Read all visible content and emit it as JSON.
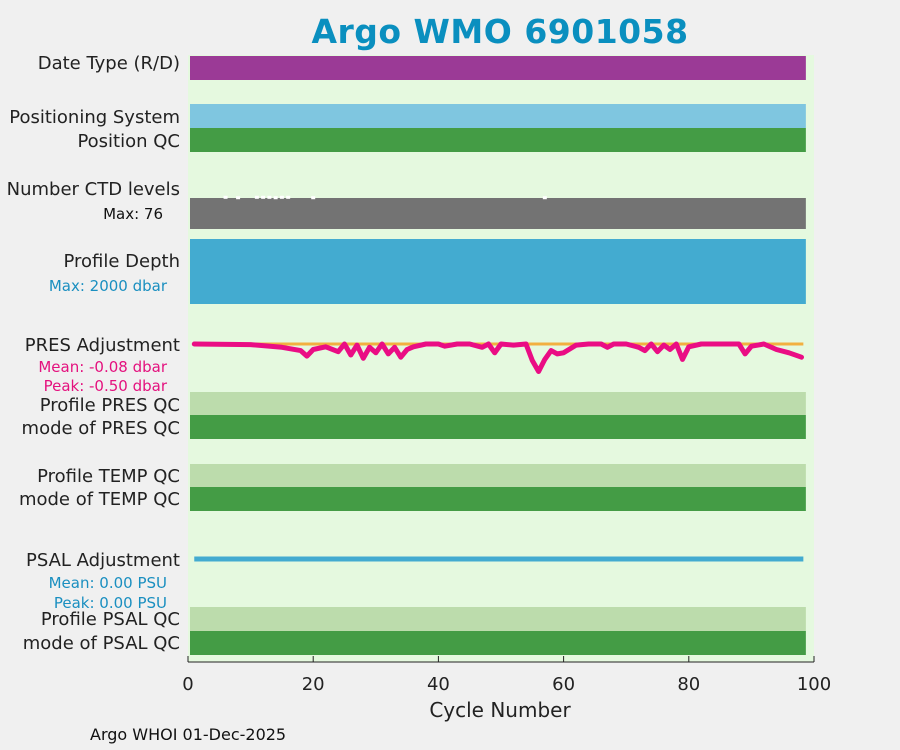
{
  "page": {
    "title": "Argo WMO 6901058",
    "title_color": "#0a8fbf",
    "footer": "Argo WHOI 01-Dec-2025"
  },
  "chart_data": {
    "type": "line",
    "xlabel": "Cycle Number",
    "xlim": [
      0,
      100
    ],
    "xticks": [
      0,
      20,
      40,
      60,
      80,
      100
    ],
    "grid": false,
    "cycles": {
      "first": 1,
      "last": 98
    },
    "colors": {
      "background": "#e5f9df",
      "date_type": "#9b3a96",
      "positioning": "#7fc6e0",
      "qc_good": "#449c45",
      "qc_profile": "#bcdcac",
      "ctd_levels": "#737373",
      "profile_depth": "#43abd0",
      "pres_adj": "#ea0d84",
      "pres_ref": "#f2b040",
      "psal_adj": "#43abd0",
      "blue_text": "#1a8fc0",
      "pink_text": "#e4117e"
    },
    "tracks": {
      "date_type": {
        "label": "Date Type (R/D)",
        "value": "R"
      },
      "positioning_system": {
        "label": "Positioning System"
      },
      "position_qc": {
        "label": "Position QC"
      },
      "ctd_levels": {
        "label": "Number CTD levels",
        "max_label": "Max: 76",
        "max": 76
      },
      "profile_depth": {
        "label": "Profile Depth",
        "max_label": "Max: 2000 dbar",
        "max": 2000
      },
      "pres_adjustment": {
        "label": "PRES Adjustment",
        "mean_label": "Mean: -0.08 dbar",
        "peak_label": "Peak: -0.50 dbar",
        "mean": -0.08,
        "peak": -0.5
      },
      "profile_pres_qc": {
        "label": "Profile PRES QC"
      },
      "mode_pres_qc": {
        "label": "mode of PRES QC"
      },
      "profile_temp_qc": {
        "label": "Profile TEMP QC"
      },
      "mode_temp_qc": {
        "label": "mode of TEMP QC"
      },
      "psal_adjustment": {
        "label": "PSAL Adjustment",
        "mean_label": "Mean: 0.00 PSU",
        "peak_label": "Peak: 0.00 PSU",
        "mean": 0,
        "peak": 0
      },
      "profile_psal_qc": {
        "label": "Profile PSAL QC"
      },
      "mode_psal_qc": {
        "label": "mode of PSAL QC"
      }
    },
    "pres_adjustment_series": {
      "x": [
        1,
        10,
        15,
        18,
        19,
        20,
        22,
        24,
        25,
        26,
        27,
        28,
        29,
        30,
        31,
        32,
        33,
        34,
        35,
        36,
        38,
        40,
        41,
        43,
        45,
        47,
        48,
        49,
        50,
        52,
        54,
        55,
        56,
        57,
        58,
        59,
        60,
        62,
        64,
        66,
        67,
        68,
        70,
        72,
        73,
        74,
        75,
        76,
        77,
        78,
        79,
        80,
        82,
        84,
        86,
        88,
        89,
        90,
        92,
        94,
        96,
        98
      ],
      "values": [
        0.0,
        -0.01,
        -0.06,
        -0.12,
        -0.22,
        -0.1,
        -0.05,
        -0.14,
        0.0,
        -0.2,
        -0.02,
        -0.26,
        -0.06,
        -0.16,
        0.0,
        -0.18,
        -0.06,
        -0.24,
        -0.1,
        -0.05,
        0.0,
        0.0,
        -0.04,
        0.0,
        0.0,
        -0.06,
        0.0,
        -0.16,
        0.0,
        -0.02,
        0.0,
        -0.3,
        -0.5,
        -0.28,
        -0.12,
        -0.18,
        -0.16,
        -0.02,
        0.0,
        0.0,
        -0.06,
        0.0,
        0.0,
        -0.06,
        -0.12,
        0.0,
        -0.14,
        -0.02,
        -0.1,
        0.0,
        -0.28,
        -0.05,
        0.0,
        0.0,
        0.0,
        0.0,
        -0.18,
        -0.04,
        0.0,
        -0.1,
        -0.16,
        -0.24
      ]
    },
    "ctd_levels_series": {
      "x": [
        6,
        8,
        11,
        12,
        13,
        14,
        15,
        16,
        20,
        57
      ],
      "values": [
        74,
        73,
        74,
        74,
        74,
        73,
        74,
        74,
        73,
        73
      ]
    }
  }
}
